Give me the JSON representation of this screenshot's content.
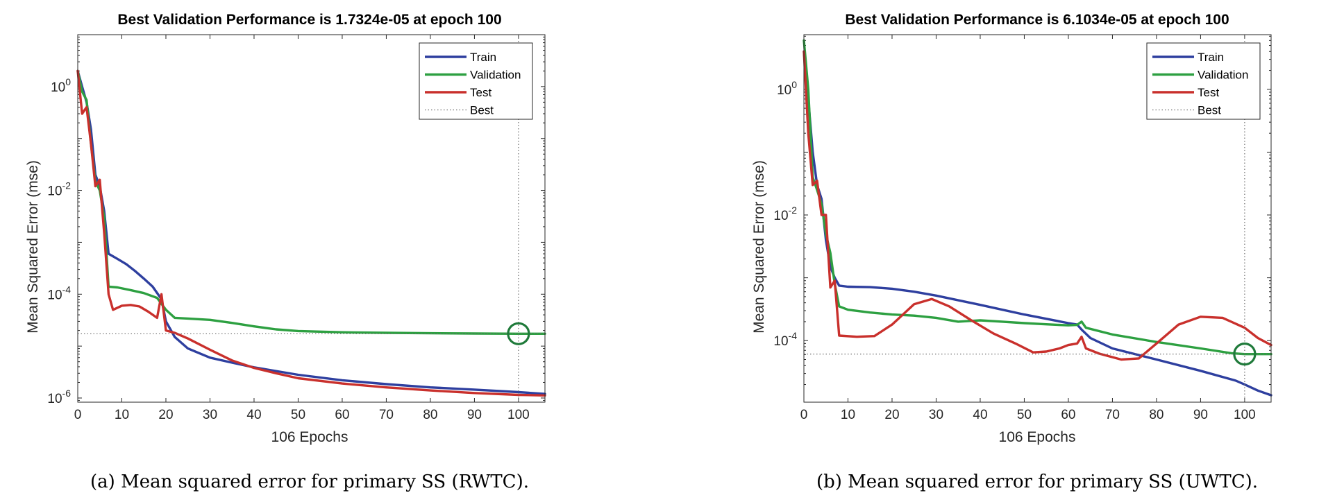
{
  "chart_data": [
    {
      "type": "line",
      "yscale": "log",
      "title": "Best Validation Performance is 1.7324e-05 at epoch 100",
      "xlabel": "106 Epochs",
      "ylabel": "Mean Squared Error  (mse)",
      "caption": "(a) Mean squared error for primary SS (RWTC).",
      "xlim": [
        0,
        106
      ],
      "ylim_exp": [
        -6.08,
        1.0
      ],
      "xticks": [
        0,
        10,
        20,
        30,
        40,
        50,
        60,
        70,
        80,
        90,
        100
      ],
      "yticks_exp": [
        -6,
        -4,
        -2,
        0
      ],
      "best_epoch": 100,
      "best_value": 1.7324e-05,
      "legend": [
        "Train",
        "Validation",
        "Test",
        "Best"
      ],
      "series": [
        {
          "name": "Train",
          "color": "#2e3f9f",
          "points": [
            [
              0,
              2.0
            ],
            [
              1,
              1.0
            ],
            [
              2,
              0.5
            ],
            [
              3,
              0.15
            ],
            [
              4,
              0.02
            ],
            [
              5,
              0.012
            ],
            [
              6,
              0.004
            ],
            [
              7,
              0.0006
            ],
            [
              9,
              0.00048
            ],
            [
              11,
              0.00038
            ],
            [
              13,
              0.00028
            ],
            [
              15,
              0.0002
            ],
            [
              17,
              0.00014
            ],
            [
              19,
              8e-05
            ],
            [
              20,
              3e-05
            ],
            [
              22,
              1.5e-05
            ],
            [
              25,
              9e-06
            ],
            [
              30,
              6e-06
            ],
            [
              35,
              4.8e-06
            ],
            [
              40,
              3.9e-06
            ],
            [
              50,
              2.8e-06
            ],
            [
              60,
              2.2e-06
            ],
            [
              70,
              1.85e-06
            ],
            [
              80,
              1.6e-06
            ],
            [
              90,
              1.45e-06
            ],
            [
              100,
              1.3e-06
            ],
            [
              106,
              1.2e-06
            ]
          ]
        },
        {
          "name": "Validation",
          "color": "#2da041",
          "points": [
            [
              0,
              2.0
            ],
            [
              1,
              0.8
            ],
            [
              2,
              0.55
            ],
            [
              3,
              0.08
            ],
            [
              4,
              0.015
            ],
            [
              5,
              0.01
            ],
            [
              6,
              0.003
            ],
            [
              7,
              0.00014
            ],
            [
              9,
              0.000135
            ],
            [
              12,
              0.00012
            ],
            [
              15,
              0.000105
            ],
            [
              18,
              8.5e-05
            ],
            [
              20,
              5e-05
            ],
            [
              22,
              3.5e-05
            ],
            [
              25,
              3.4e-05
            ],
            [
              30,
              3.2e-05
            ],
            [
              35,
              2.8e-05
            ],
            [
              40,
              2.4e-05
            ],
            [
              45,
              2.1e-05
            ],
            [
              50,
              1.95e-05
            ],
            [
              60,
              1.85e-05
            ],
            [
              70,
              1.8e-05
            ],
            [
              80,
              1.77e-05
            ],
            [
              90,
              1.75e-05
            ],
            [
              100,
              1.73e-05
            ],
            [
              106,
              1.73e-05
            ]
          ]
        },
        {
          "name": "Test",
          "color": "#c9302c",
          "points": [
            [
              0,
              2.0
            ],
            [
              1,
              0.3
            ],
            [
              2,
              0.4
            ],
            [
              3,
              0.08
            ],
            [
              4,
              0.012
            ],
            [
              5,
              0.016
            ],
            [
              6,
              0.0015
            ],
            [
              7,
              0.0001
            ],
            [
              8,
              5e-05
            ],
            [
              10,
              6e-05
            ],
            [
              12,
              6.2e-05
            ],
            [
              14,
              5.8e-05
            ],
            [
              16,
              4.6e-05
            ],
            [
              18,
              3.5e-05
            ],
            [
              19,
              0.0001
            ],
            [
              20,
              2e-05
            ],
            [
              22,
              1.8e-05
            ],
            [
              25,
              1.4e-05
            ],
            [
              30,
              8.5e-06
            ],
            [
              35,
              5.3e-06
            ],
            [
              40,
              3.8e-06
            ],
            [
              45,
              3e-06
            ],
            [
              50,
              2.4e-06
            ],
            [
              60,
              1.9e-06
            ],
            [
              70,
              1.6e-06
            ],
            [
              80,
              1.4e-06
            ],
            [
              90,
              1.25e-06
            ],
            [
              100,
              1.15e-06
            ],
            [
              106,
              1.12e-06
            ]
          ]
        }
      ]
    },
    {
      "type": "line",
      "yscale": "log",
      "title": "Best Validation Performance is 6.1034e-05 at epoch 100",
      "xlabel": "106 Epochs",
      "ylabel": "Mean Squared Error  (mse)",
      "caption": "(b) Mean squared error for primary SS (UWTC).",
      "xlim": [
        0,
        106
      ],
      "ylim_exp": [
        -4.98,
        0.87
      ],
      "xticks": [
        0,
        10,
        20,
        30,
        40,
        50,
        60,
        70,
        80,
        90,
        100
      ],
      "yticks_exp": [
        -4,
        -2,
        0
      ],
      "best_epoch": 100,
      "best_value": 6.1034e-05,
      "legend": [
        "Train",
        "Validation",
        "Test",
        "Best"
      ],
      "series": [
        {
          "name": "Train",
          "color": "#2e3f9f",
          "points": [
            [
              0,
              4.0
            ],
            [
              1,
              0.7
            ],
            [
              2,
              0.1
            ],
            [
              3,
              0.03
            ],
            [
              4,
              0.018
            ],
            [
              5,
              0.004
            ],
            [
              6,
              0.0015
            ],
            [
              7,
              0.001
            ],
            [
              8,
              0.00075
            ],
            [
              10,
              0.00072
            ],
            [
              15,
              0.00071
            ],
            [
              20,
              0.00067
            ],
            [
              25,
              0.0006
            ],
            [
              30,
              0.00052
            ],
            [
              40,
              0.00037
            ],
            [
              50,
              0.00026
            ],
            [
              60,
              0.00019
            ],
            [
              62,
              0.00018
            ],
            [
              63,
              0.00015
            ],
            [
              65,
              0.00011
            ],
            [
              70,
              7.5e-05
            ],
            [
              80,
              5e-05
            ],
            [
              90,
              3.3e-05
            ],
            [
              98,
              2.3e-05
            ],
            [
              100,
              2e-05
            ],
            [
              103,
              1.6e-05
            ],
            [
              106,
              1.35e-05
            ]
          ]
        },
        {
          "name": "Validation",
          "color": "#2da041",
          "points": [
            [
              0,
              6.0
            ],
            [
              1,
              1.0
            ],
            [
              2,
              0.04
            ],
            [
              3,
              0.025
            ],
            [
              4,
              0.015
            ],
            [
              5,
              0.005
            ],
            [
              6,
              0.0025
            ],
            [
              7,
              0.0008
            ],
            [
              8,
              0.00035
            ],
            [
              10,
              0.00031
            ],
            [
              15,
              0.00028
            ],
            [
              20,
              0.00026
            ],
            [
              25,
              0.00025
            ],
            [
              30,
              0.00023
            ],
            [
              35,
              0.0002
            ],
            [
              40,
              0.00021
            ],
            [
              45,
              0.0002
            ],
            [
              50,
              0.00019
            ],
            [
              55,
              0.000182
            ],
            [
              60,
              0.000175
            ],
            [
              62,
              0.000178
            ],
            [
              63,
              0.0002
            ],
            [
              64,
              0.00016
            ],
            [
              70,
              0.000125
            ],
            [
              80,
              9.5e-05
            ],
            [
              90,
              7.5e-05
            ],
            [
              97,
              6.3e-05
            ],
            [
              100,
              6.1e-05
            ],
            [
              106,
              6.1e-05
            ]
          ]
        },
        {
          "name": "Test",
          "color": "#c9302c",
          "points": [
            [
              0,
              4.0
            ],
            [
              1,
              0.2
            ],
            [
              2,
              0.03
            ],
            [
              3,
              0.035
            ],
            [
              4,
              0.01
            ],
            [
              5,
              0.01
            ],
            [
              6,
              0.0007
            ],
            [
              7,
              0.0009
            ],
            [
              8,
              0.00012
            ],
            [
              12,
              0.000115
            ],
            [
              16,
              0.000118
            ],
            [
              20,
              0.00018
            ],
            [
              25,
              0.00038
            ],
            [
              29,
              0.00046
            ],
            [
              33,
              0.00035
            ],
            [
              38,
              0.00021
            ],
            [
              43,
              0.00013
            ],
            [
              48,
              9e-05
            ],
            [
              52,
              6.5e-05
            ],
            [
              55,
              6.7e-05
            ],
            [
              58,
              7.5e-05
            ],
            [
              60,
              8.5e-05
            ],
            [
              62,
              9e-05
            ],
            [
              63,
              0.000115
            ],
            [
              64,
              7.5e-05
            ],
            [
              67,
              6.2e-05
            ],
            [
              72,
              5e-05
            ],
            [
              76,
              5.2e-05
            ],
            [
              80,
              9e-05
            ],
            [
              85,
              0.00018
            ],
            [
              90,
              0.00024
            ],
            [
              95,
              0.00023
            ],
            [
              100,
              0.00016
            ],
            [
              103,
              0.00011
            ],
            [
              106,
              8.5e-05
            ]
          ]
        }
      ]
    }
  ]
}
